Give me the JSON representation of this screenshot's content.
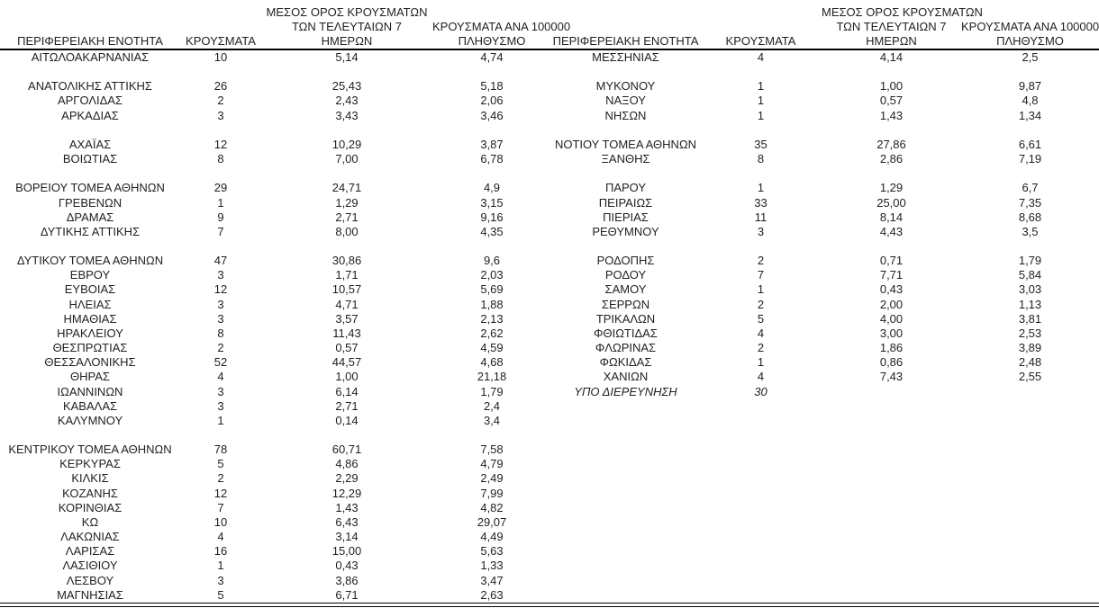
{
  "header": {
    "region": "ΠΕΡΙΦΕΡΕΙΑΚΗ ΕΝΟΤΗΤΑ",
    "cases": "ΚΡΟΥΣΜΑΤΑ",
    "avg_line1": "ΜΕΣΟΣ ΟΡΟΣ ΚΡΟΥΣΜΑΤΩΝ",
    "avg_line2": "ΤΩΝ ΤΕΛΕΥΤΑΙΩΝ 7",
    "avg_line3": "ΗΜΕΡΩΝ",
    "per100k_line1": "ΚΡΟΥΣΜΑΤΑ ΑΝΑ 100000",
    "per100k_line2": "ΠΛΗΘΥΣΜΟ"
  },
  "colors": {
    "text": "#1f1f1f",
    "rule": "#000000",
    "background": "#ffffff"
  },
  "rows": [
    {
      "l": [
        "ΑΙΤΩΛΟΑΚΑΡΝΑΝΙΑΣ",
        "10",
        "5,14",
        "4,74"
      ],
      "r": [
        "ΜΕΣΣΗΝΙΑΣ",
        "4",
        "4,14",
        "2,5"
      ]
    },
    {
      "l": null,
      "r": null
    },
    {
      "l": [
        "ΑΝΑΤΟΛΙΚΗΣ ΑΤΤΙΚΗΣ",
        "26",
        "25,43",
        "5,18"
      ],
      "r": [
        "ΜΥΚΟΝΟΥ",
        "1",
        "1,00",
        "9,87"
      ]
    },
    {
      "l": [
        "ΑΡΓΟΛΙΔΑΣ",
        "2",
        "2,43",
        "2,06"
      ],
      "r": [
        "ΝΑΞΟΥ",
        "1",
        "0,57",
        "4,8"
      ]
    },
    {
      "l": [
        "ΑΡΚΑΔΙΑΣ",
        "3",
        "3,43",
        "3,46"
      ],
      "r": [
        "ΝΗΣΩΝ",
        "1",
        "1,43",
        "1,34"
      ]
    },
    {
      "l": null,
      "r": null
    },
    {
      "l": [
        "ΑΧΑΪΑΣ",
        "12",
        "10,29",
        "3,87"
      ],
      "r": [
        "ΝΟΤΙΟΥ ΤΟΜΕΑ ΑΘΗΝΩΝ",
        "35",
        "27,86",
        "6,61"
      ]
    },
    {
      "l": [
        "ΒΟΙΩΤΙΑΣ",
        "8",
        "7,00",
        "6,78"
      ],
      "r": [
        "ΞΑΝΘΗΣ",
        "8",
        "2,86",
        "7,19"
      ]
    },
    {
      "l": null,
      "r": null
    },
    {
      "l": [
        "ΒΟΡΕΙΟΥ ΤΟΜΕΑ ΑΘΗΝΩΝ",
        "29",
        "24,71",
        "4,9"
      ],
      "r": [
        "ΠΑΡΟΥ",
        "1",
        "1,29",
        "6,7"
      ]
    },
    {
      "l": [
        "ΓΡΕΒΕΝΩΝ",
        "1",
        "1,29",
        "3,15"
      ],
      "r": [
        "ΠΕΙΡΑΙΩΣ",
        "33",
        "25,00",
        "7,35"
      ]
    },
    {
      "l": [
        "ΔΡΑΜΑΣ",
        "9",
        "2,71",
        "9,16"
      ],
      "r": [
        "ΠΙΕΡΙΑΣ",
        "11",
        "8,14",
        "8,68"
      ]
    },
    {
      "l": [
        "ΔΥΤΙΚΗΣ ΑΤΤΙΚΗΣ",
        "7",
        "8,00",
        "4,35"
      ],
      "r": [
        "ΡΕΘΥΜΝΟΥ",
        "3",
        "4,43",
        "3,5"
      ]
    },
    {
      "l": null,
      "r": null
    },
    {
      "l": [
        "ΔΥΤΙΚΟΥ ΤΟΜΕΑ ΑΘΗΝΩΝ",
        "47",
        "30,86",
        "9,6"
      ],
      "r": [
        "ΡΟΔΟΠΗΣ",
        "2",
        "0,71",
        "1,79"
      ]
    },
    {
      "l": [
        "ΕΒΡΟΥ",
        "3",
        "1,71",
        "2,03"
      ],
      "r": [
        "ΡΟΔΟΥ",
        "7",
        "7,71",
        "5,84"
      ]
    },
    {
      "l": [
        "ΕΥΒΟΙΑΣ",
        "12",
        "10,57",
        "5,69"
      ],
      "r": [
        "ΣΑΜΟΥ",
        "1",
        "0,43",
        "3,03"
      ]
    },
    {
      "l": [
        "ΗΛΕΙΑΣ",
        "3",
        "4,71",
        "1,88"
      ],
      "r": [
        "ΣΕΡΡΩΝ",
        "2",
        "2,00",
        "1,13"
      ]
    },
    {
      "l": [
        "ΗΜΑΘΙΑΣ",
        "3",
        "3,57",
        "2,13"
      ],
      "r": [
        "ΤΡΙΚΑΛΩΝ",
        "5",
        "4,00",
        "3,81"
      ]
    },
    {
      "l": [
        "ΗΡΑΚΛΕΙΟΥ",
        "8",
        "11,43",
        "2,62"
      ],
      "r": [
        "ΦΘΙΩΤΙΔΑΣ",
        "4",
        "3,00",
        "2,53"
      ]
    },
    {
      "l": [
        "ΘΕΣΠΡΩΤΙΑΣ",
        "2",
        "0,57",
        "4,59"
      ],
      "r": [
        "ΦΛΩΡΙΝΑΣ",
        "2",
        "1,86",
        "3,89"
      ]
    },
    {
      "l": [
        "ΘΕΣΣΑΛΟΝΙΚΗΣ",
        "52",
        "44,57",
        "4,68"
      ],
      "r": [
        "ΦΩΚΙΔΑΣ",
        "1",
        "0,86",
        "2,48"
      ]
    },
    {
      "l": [
        "ΘΗΡΑΣ",
        "4",
        "1,00",
        "21,18"
      ],
      "r": [
        "ΧΑΝΙΩΝ",
        "4",
        "7,43",
        "2,55"
      ]
    },
    {
      "l": [
        "ΙΩΑΝΝΙΝΩΝ",
        "3",
        "6,14",
        "1,79"
      ],
      "r": [
        "ΥΠΟ ΔΙΕΡΕΥΝΗΣΗ",
        "30",
        "",
        ""
      ],
      "r_italic": true
    },
    {
      "l": [
        "ΚΑΒΑΛΑΣ",
        "3",
        "2,71",
        "2,4"
      ],
      "r": null
    },
    {
      "l": [
        "ΚΑΛΥΜΝΟΥ",
        "1",
        "0,14",
        "3,4"
      ],
      "r": null
    },
    {
      "l": null,
      "r": null
    },
    {
      "l": [
        "ΚΕΝΤΡΙΚΟΥ ΤΟΜΕΑ ΑΘΗΝΩΝ",
        "78",
        "60,71",
        "7,58"
      ],
      "r": null
    },
    {
      "l": [
        "ΚΕΡΚΥΡΑΣ",
        "5",
        "4,86",
        "4,79"
      ],
      "r": null
    },
    {
      "l": [
        "ΚΙΛΚΙΣ",
        "2",
        "2,29",
        "2,49"
      ],
      "r": null
    },
    {
      "l": [
        "ΚΟΖΑΝΗΣ",
        "12",
        "12,29",
        "7,99"
      ],
      "r": null
    },
    {
      "l": [
        "ΚΟΡΙΝΘΙΑΣ",
        "7",
        "1,43",
        "4,82"
      ],
      "r": null
    },
    {
      "l": [
        "ΚΩ",
        "10",
        "6,43",
        "29,07"
      ],
      "r": null
    },
    {
      "l": [
        "ΛΑΚΩΝΙΑΣ",
        "4",
        "3,14",
        "4,49"
      ],
      "r": null
    },
    {
      "l": [
        "ΛΑΡΙΣΑΣ",
        "16",
        "15,00",
        "5,63"
      ],
      "r": null
    },
    {
      "l": [
        "ΛΑΣΙΘΙΟΥ",
        "1",
        "0,43",
        "1,33"
      ],
      "r": null
    },
    {
      "l": [
        "ΛΕΣΒΟΥ",
        "3",
        "3,86",
        "3,47"
      ],
      "r": null
    },
    {
      "l": [
        "ΜΑΓΝΗΣΙΑΣ",
        "5",
        "6,71",
        "2,63"
      ],
      "r": null
    }
  ]
}
